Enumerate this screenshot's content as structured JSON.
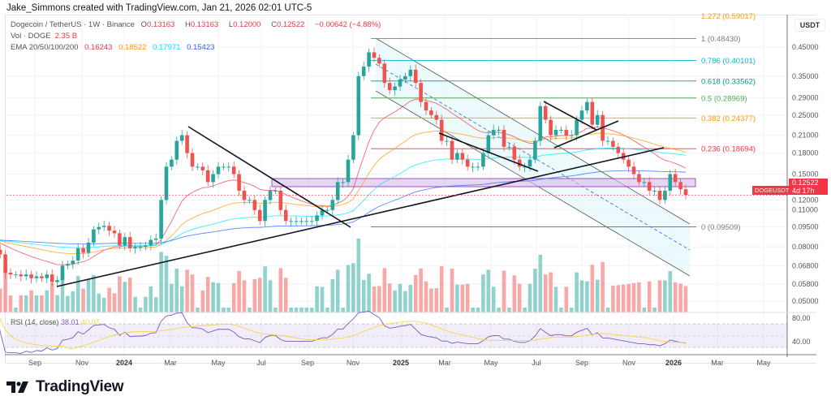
{
  "credit": "Jake_Simmons created with TradingView.com, Jan 21, 2026 02:01 UTC-5",
  "symbol": {
    "name": "Dogecoin / TetherUS · 1W · Binance",
    "o_label": "O",
    "o": "0.13163",
    "h_label": "H",
    "h": "0.13163",
    "l_label": "L",
    "l": "0.12000",
    "c_label": "C",
    "c": "0.12522",
    "change": "−0.00642 (−4.88%)"
  },
  "volume": {
    "label": "Vol · DOGE",
    "value": "2.35 B"
  },
  "ema": {
    "label": "EMA 20/50/100/200",
    "values": [
      "0.16243",
      "0.18522",
      "0.17971",
      "0.15423"
    ],
    "colors": [
      "#f23645",
      "#ff9800",
      "#00e5ff",
      "#2962ff"
    ]
  },
  "price_scale": {
    "currency": "USDT",
    "ticks": [
      "0.45000",
      "0.35000",
      "0.29000",
      "0.25000",
      "0.21000",
      "0.18000",
      "0.15000",
      "0.12000",
      "0.11000",
      "0.09500",
      "0.08000",
      "0.06800",
      "0.05800",
      "0.05000"
    ],
    "last_price": "0.12522",
    "countdown": "4d 17h",
    "ticker": "DOGEUSDT"
  },
  "fib_levels": [
    {
      "label": "1.272 (0.59017)",
      "price": 0.59017,
      "color": "#ff9800"
    },
    {
      "label": "1 (0.48430)",
      "price": 0.4843,
      "color": "#787b86"
    },
    {
      "label": "0.786 (0.40101)",
      "price": 0.40101,
      "color": "#00bcd4"
    },
    {
      "label": "0.618 (0.33562)",
      "price": 0.33562,
      "color": "#089981"
    },
    {
      "label": "0.5 (0.28969)",
      "price": 0.28969,
      "color": "#4caf50"
    },
    {
      "label": "0.382 (0.24377)",
      "price": 0.24377,
      "color": "#ff9800"
    },
    {
      "label": "0.236 (0.18694)",
      "price": 0.18694,
      "color": "#f23645"
    },
    {
      "label": "0 (0.09509)",
      "price": 0.09509,
      "color": "#787b86"
    }
  ],
  "rsi": {
    "label": "RSI (14, close)",
    "value": "38.01",
    "ma": "40.07",
    "ticks": [
      "80.00",
      "40.00"
    ]
  },
  "x_axis": [
    "Sep",
    "Nov",
    "2024",
    "Mar",
    "May",
    "Jul",
    "Sep",
    "Nov",
    "2025",
    "Mar",
    "May",
    "Jul",
    "Sep",
    "Nov",
    "2026",
    "Mar",
    "May"
  ],
  "brand": "TradingView",
  "colors": {
    "up": "#26a69a",
    "down": "#ef5350"
  },
  "chart_data": {
    "type": "candlestick",
    "interval": "1W",
    "scale": "log",
    "ylim": [
      0.046,
      0.6
    ],
    "closes": [
      0.074,
      0.078,
      0.075,
      0.064,
      0.063,
      0.063,
      0.062,
      0.063,
      0.061,
      0.062,
      0.061,
      0.063,
      0.059,
      0.06,
      0.068,
      0.069,
      0.071,
      0.079,
      0.076,
      0.083,
      0.093,
      0.095,
      0.096,
      0.092,
      0.09,
      0.081,
      0.087,
      0.079,
      0.08,
      0.08,
      0.081,
      0.085,
      0.086,
      0.12,
      0.16,
      0.17,
      0.2,
      0.21,
      0.18,
      0.16,
      0.16,
      0.155,
      0.14,
      0.15,
      0.16,
      0.16,
      0.16,
      0.15,
      0.13,
      0.12,
      0.12,
      0.11,
      0.1,
      0.12,
      0.13,
      0.13,
      0.11,
      0.1,
      0.1,
      0.1,
      0.1,
      0.1,
      0.1,
      0.105,
      0.11,
      0.11,
      0.12,
      0.14,
      0.14,
      0.17,
      0.21,
      0.35,
      0.38,
      0.43,
      0.41,
      0.39,
      0.33,
      0.31,
      0.32,
      0.34,
      0.35,
      0.37,
      0.33,
      0.28,
      0.26,
      0.25,
      0.24,
      0.2,
      0.2,
      0.17,
      0.18,
      0.17,
      0.16,
      0.16,
      0.16,
      0.18,
      0.21,
      0.22,
      0.22,
      0.19,
      0.19,
      0.17,
      0.16,
      0.16,
      0.17,
      0.2,
      0.27,
      0.24,
      0.21,
      0.22,
      0.22,
      0.21,
      0.21,
      0.24,
      0.26,
      0.28,
      0.23,
      0.25,
      0.2,
      0.2,
      0.19,
      0.18,
      0.17,
      0.16,
      0.15,
      0.14,
      0.14,
      0.13,
      0.13,
      0.12,
      0.13,
      0.15,
      0.14,
      0.13163,
      0.12522
    ]
  }
}
